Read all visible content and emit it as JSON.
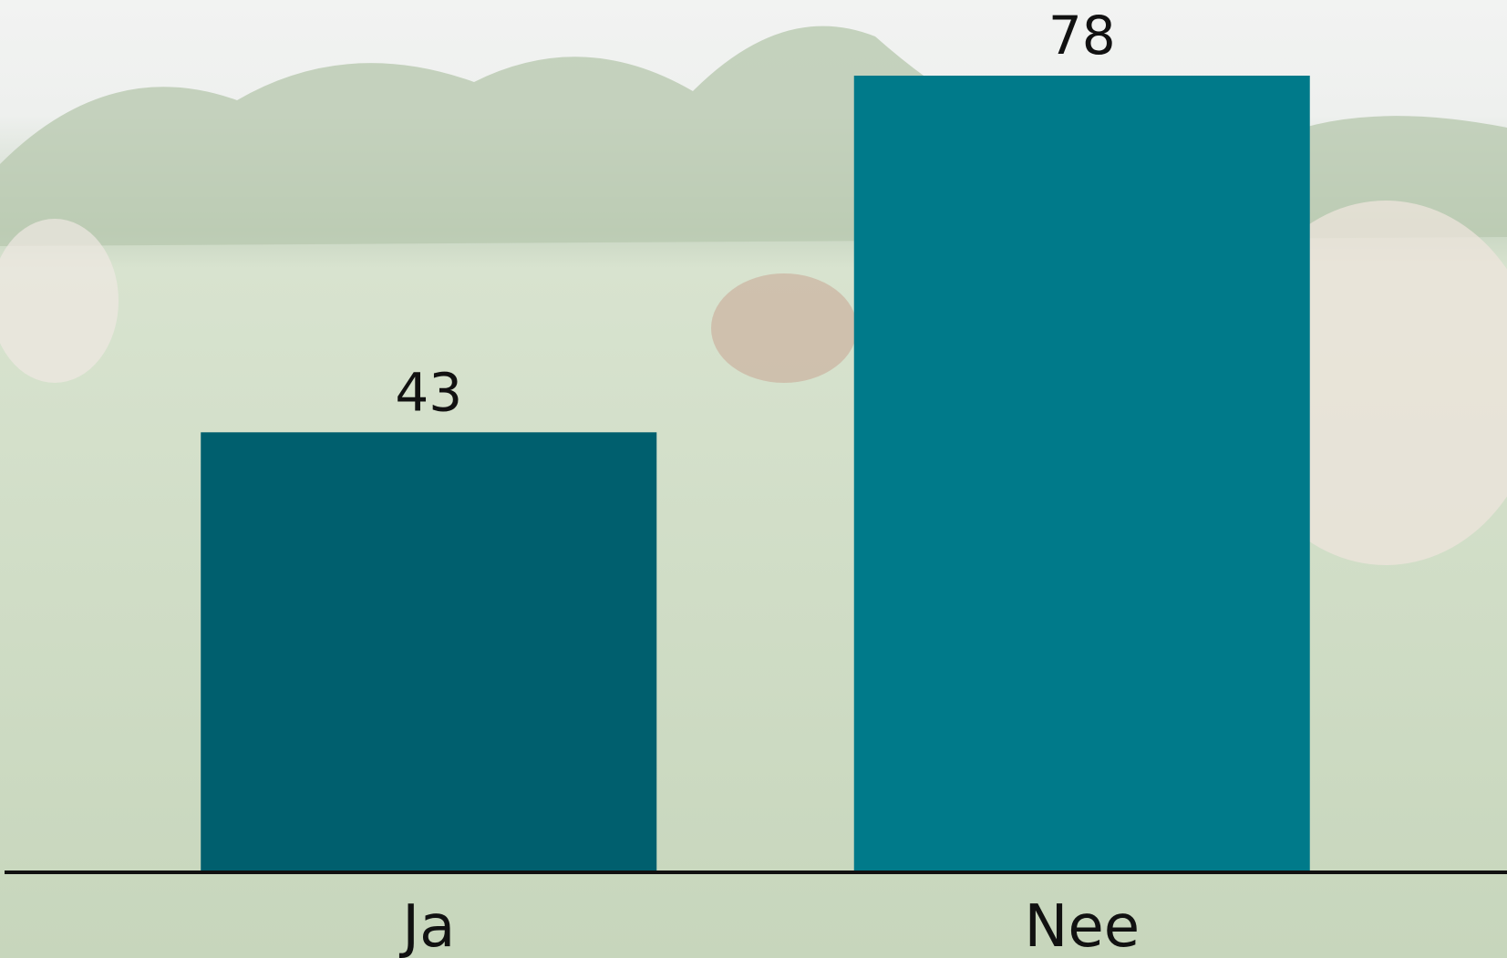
{
  "chart_data": {
    "type": "bar",
    "categories": [
      "Ja",
      "Nee"
    ],
    "values": [
      43,
      78
    ],
    "colors": [
      "#005f6e",
      "#007a8a"
    ]
  }
}
